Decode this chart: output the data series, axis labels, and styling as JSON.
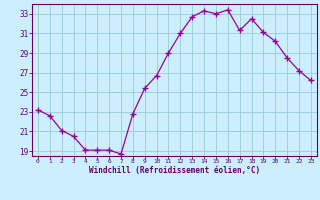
{
  "x": [
    0,
    1,
    2,
    3,
    4,
    5,
    6,
    7,
    8,
    9,
    10,
    11,
    12,
    13,
    14,
    15,
    16,
    17,
    18,
    19,
    20,
    21,
    22,
    23
  ],
  "y": [
    23.2,
    22.6,
    21.1,
    20.5,
    19.1,
    19.1,
    19.1,
    18.7,
    22.8,
    25.4,
    26.7,
    29.0,
    31.0,
    32.7,
    33.3,
    33.0,
    33.4,
    31.3,
    32.5,
    31.1,
    30.2,
    28.5,
    27.2,
    26.2
  ],
  "line_color": "#990099",
  "marker": "+",
  "marker_size": 4,
  "xlabel": "Windchill (Refroidissement éolien,°C)",
  "xlabel_color": "#660066",
  "bg_color": "#cceeff",
  "grid_color": "#99cccc",
  "tick_color": "#660066",
  "spine_color": "#660066",
  "ylim": [
    18.5,
    34.0
  ],
  "yticks": [
    19,
    21,
    23,
    25,
    27,
    29,
    31,
    33
  ],
  "xticks": [
    0,
    1,
    2,
    3,
    4,
    5,
    6,
    7,
    8,
    9,
    10,
    11,
    12,
    13,
    14,
    15,
    16,
    17,
    18,
    19,
    20,
    21,
    22,
    23
  ],
  "figsize": [
    3.2,
    2.0
  ],
  "dpi": 100
}
